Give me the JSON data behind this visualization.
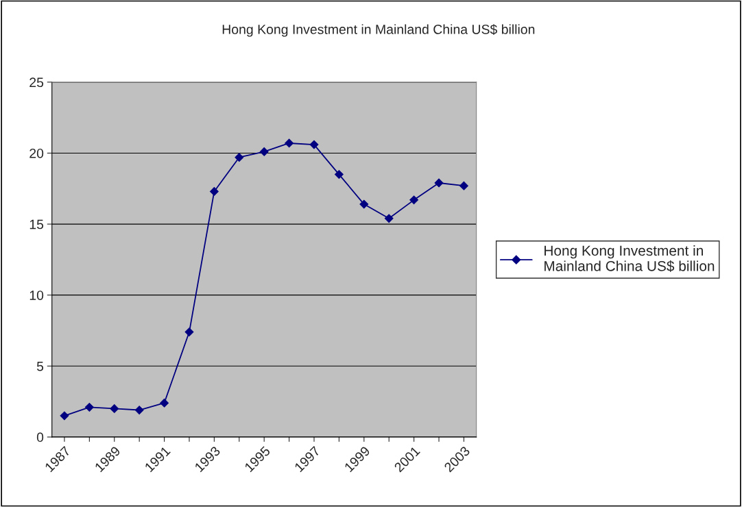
{
  "chart_data": {
    "type": "line",
    "title": "Hong Kong Investment in Mainland China US$ billion",
    "categories": [
      "1987",
      null,
      "1989",
      null,
      "1991",
      null,
      "1993",
      null,
      "1995",
      null,
      "1997",
      null,
      "1999",
      null,
      "2001",
      null,
      "2003"
    ],
    "series": [
      {
        "name": "Hong Kong Investment in Mainland China US$ billion",
        "color": "#000080",
        "values": [
          1.5,
          2.1,
          2.0,
          1.9,
          2.4,
          7.4,
          17.3,
          19.7,
          20.1,
          20.7,
          20.6,
          18.5,
          16.4,
          15.4,
          16.7,
          17.9,
          17.7
        ]
      }
    ],
    "ylim": [
      0,
      25
    ],
    "yticks": [
      0,
      5,
      10,
      15,
      20,
      25
    ],
    "grid": "y",
    "legend": "right",
    "marker": "diamond",
    "line_style": "solid"
  }
}
